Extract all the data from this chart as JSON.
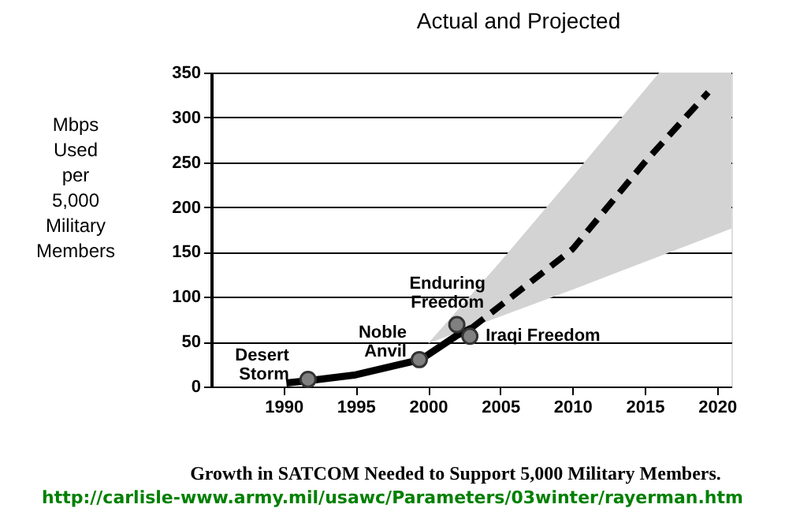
{
  "chart_data": {
    "type": "line",
    "title": "Actual and Projected",
    "ylabel": "Mbps Used per 5,000 Military Members",
    "xlim": [
      1985,
      2021
    ],
    "xticks": [
      1990,
      1995,
      2000,
      2005,
      2010,
      2015,
      2020
    ],
    "ylim": [
      0,
      350
    ],
    "yticks": [
      0,
      50,
      100,
      150,
      200,
      250,
      300,
      350
    ],
    "grid": "y",
    "series": [
      {
        "type": "area",
        "color": "#d3d3d3",
        "x": [
          2000,
          2005,
          2010,
          2016,
          2021
        ],
        "values": [
          null,
          null,
          null,
          null,
          null
        ],
        "lower": [
          48,
          78,
          108,
          145,
          176
        ],
        "upper": [
          48,
          139,
          234,
          350,
          350
        ]
      },
      {
        "type": "line",
        "color": "#000000",
        "line_style": "solid",
        "x": [
          1990.2,
          1992,
          1995,
          1999.5,
          2002,
          2003
        ],
        "values": [
          4,
          7,
          13,
          30,
          57,
          65
        ]
      },
      {
        "type": "line",
        "color": "#000000",
        "line_style": "dashed",
        "x": [
          2003,
          2005,
          2010,
          2015,
          2019.4
        ],
        "values": [
          65,
          90,
          153,
          250,
          328
        ]
      },
      {
        "type": "scatter",
        "color": "#808080",
        "marker": "circle",
        "x": [
          1991.7,
          1999.4,
          2002,
          2002.9
        ],
        "values": [
          8,
          30,
          69,
          56
        ]
      }
    ],
    "annotations": [
      {
        "text": "Desert\nStorm",
        "x": 1991.7,
        "y": 8
      },
      {
        "text": "Noble\nAnvil",
        "x": 1999.4,
        "y": 30
      },
      {
        "text": "Enduring\nFreedom",
        "x": 2002,
        "y": 69
      },
      {
        "text": "Iraqi Freedom",
        "x": 2002.9,
        "y": 56
      },
      "Growth in SATCOM Needed to Support 5,000 Military Members.",
      "http://carlisle-www.army.mil/usawc/Parameters/03winter/rayerman.htm"
    ]
  }
}
